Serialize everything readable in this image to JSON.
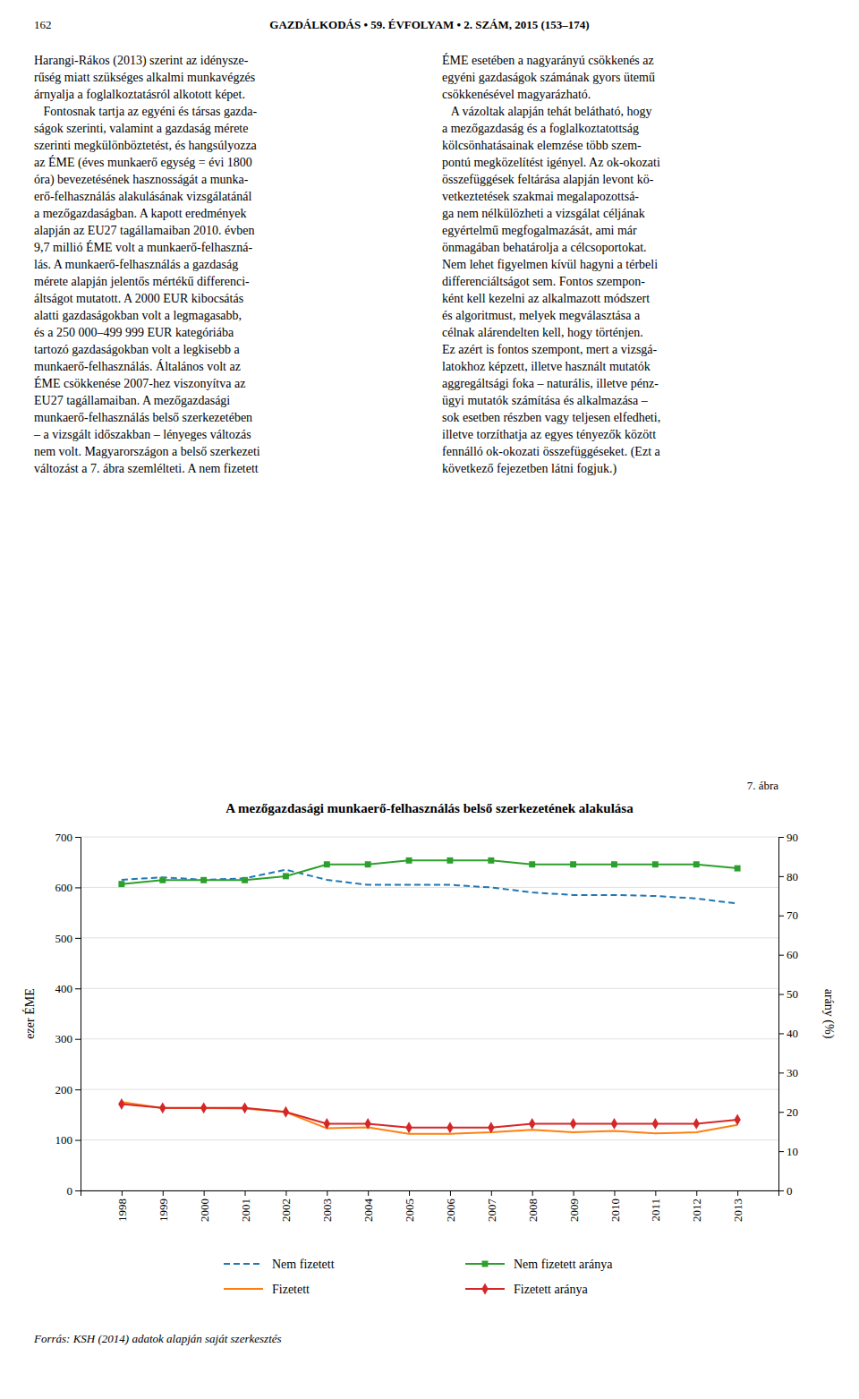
{
  "page_number": "162",
  "header": "GAZDÁLKODÁS • 59. ÉVFOLYAM • 2. SZÁM, 2015 (153–174)",
  "body_text": {
    "left_column": [
      "Harangi-Rákos (2013) szerint az idénysze-",
      "rűség miatt szükséges alkalmi munkavégzés",
      "árnyalja a foglalkoztatásról alkotott képet.",
      "   Fontosnak tartja az egyéni és társas gazda-",
      "ságok szerinti, valamint a gazdaság mérete",
      "szerinti megkülönböztetést, és hangsúlyozza",
      "az ÉME (éves munkaerő egység = évi 1800",
      "óra) bevezetésének hasznosságát a munka-",
      "erő-felhasználás alakulásának vizsgálatánál",
      "a mezőgazdaságban. A kapott eredmények",
      "alapján az EU27 tagállamaiban 2010. évben",
      "9,7 millió ÉME volt a munkaerő-felhaszná-",
      "lás. A munkaerő-felhasználás a gazdaság",
      "mérete alapján jelentős mértékű differenci-",
      "áltságot mutatott. A 2000 EUR kibocsátás",
      "alatti gazdaságokban volt a legmagasabb,",
      "és a 250 000–499 999 EUR kategóriába",
      "tartozó gazdaságokban volt a legkisebb a",
      "munkaerő-felhasználás. Általános volt az",
      "ÉME csökkenése 2007-hez viszonyítva az",
      "EU27 tagállamaiban. A mezőgazdasági",
      "munkaerő-felhasználás belső szerkezetében",
      "– a vizsgált időszakban – lényeges változás",
      "nem volt. Magyarországon a belső szerkezeti",
      "változást a 7. ábra szemlélteti. A nem fizetett"
    ],
    "right_column": [
      "ÉME esetében a nagyarányú csökkenés az",
      "egyéni gazdaságok számának gyors ütemű",
      "csökkenésével magyarázható.",
      "   A vázoltak alapján tehát belátható, hogy",
      "a mezőgazdaság és a foglalkoztatottság",
      "kölcsönhatásainak elemzése több szem-",
      "pontú megközelítést igényel. Az ok-okozati",
      "összefüggések feltárása alapján levont kö-",
      "vetkeztetések szakmai megalapozottsá-",
      "ga nem nélkülözheti a vizsgálat céljának",
      "egyértelmű megfogalmazását, ami már",
      "önmagában behatárolja a célcsoportokat.",
      "Nem lehet figyelmen kívül hagyni a térbeli",
      "differenciáltságot sem. Fontos szempon-",
      "ként kell kezelni az alkalmazott módszert",
      "és algoritmust, melyek megválasztása a",
      "célnak alárendelten kell, hogy történjen.",
      "Ez azért is fontos szempont, mert a vizsgá-",
      "latokhoz képzett, illetve használt mutatók",
      "aggregáltsági foka – naturális, illetve pénz-",
      "ügyi mutatók számítása és alkalmazása –",
      "sok esetben részben vagy teljesen elfedheti,",
      "illetve torzíthatja az egyes tényezők között",
      "fennálló ok-okozati összefüggéseket. (Ezt a",
      "következő fejezetben látni fogjuk.)"
    ]
  },
  "figure_label": "7. ábra",
  "source": "Forrás: KSH (2014) adatok alapján saját szerkesztés",
  "chart_data": {
    "type": "line",
    "title": "A mezőgazdasági munkaerő-felhasználás belső szerkezetének alakulása",
    "x": [
      1998,
      1999,
      2000,
      2001,
      2002,
      2003,
      2004,
      2005,
      2006,
      2007,
      2008,
      2009,
      2010,
      2011,
      2012,
      2013
    ],
    "xlim": [
      1997,
      2014
    ],
    "xticks": [
      1998,
      1999,
      2000,
      2001,
      2002,
      2003,
      2004,
      2005,
      2006,
      2007,
      2008,
      2009,
      2010,
      2011,
      2012,
      2013
    ],
    "ylabel": "ezer ÉME",
    "y2label": "arány (%)",
    "ylim": [
      0,
      700
    ],
    "yticks": [
      0,
      100,
      200,
      300,
      400,
      500,
      600,
      700
    ],
    "y2lim": [
      0,
      90
    ],
    "y2ticks": [
      0,
      10,
      20,
      30,
      40,
      50,
      60,
      70,
      80,
      90
    ],
    "grid": true,
    "legend": "bottom",
    "series": [
      {
        "name": "Nem fizetett",
        "line_style": "dashed",
        "values": [
          615,
          620,
          615,
          618,
          635,
          615,
          605,
          605,
          605,
          600,
          590,
          585,
          585,
          583,
          578,
          568
        ]
      },
      {
        "name": "Fizetett",
        "line_style": "solid",
        "values": [
          175,
          163,
          163,
          162,
          155,
          123,
          125,
          112,
          112,
          115,
          120,
          115,
          118,
          113,
          115,
          130
        ]
      },
      {
        "name": "Nem fizetett aránya",
        "line_style": "solid",
        "marker": "square",
        "axis": "y2",
        "values": [
          78,
          79,
          79,
          79,
          80,
          83,
          83,
          84,
          84,
          84,
          83,
          83,
          83,
          83,
          83,
          82
        ]
      },
      {
        "name": "Fizetett aránya",
        "line_style": "solid",
        "marker": "diamond",
        "axis": "y2",
        "values": [
          22,
          21,
          21,
          21,
          20,
          17,
          17,
          16,
          16,
          16,
          17,
          17,
          17,
          17,
          17,
          18
        ]
      }
    ]
  }
}
